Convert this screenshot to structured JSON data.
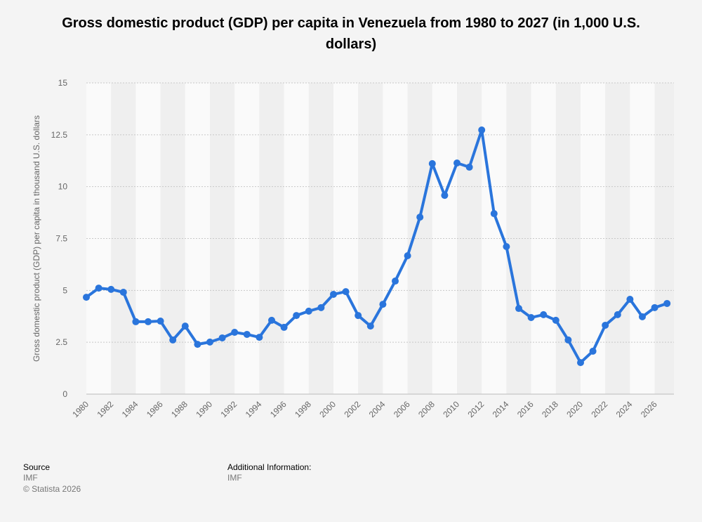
{
  "title": "Gross domestic product (GDP) per capita in Venezuela from 1980 to 2027 (in 1,000 U.S. dollars)",
  "footer": {
    "source_label": "Source",
    "source_value": "IMF",
    "copyright": "© Statista 2026",
    "additional_label": "Additional Information:",
    "additional_value": "IMF"
  },
  "colors": {
    "line": "#2a75dc",
    "band_light": "#fafafa",
    "band_dark": "#efefef",
    "grid": "#c8c8c8"
  },
  "chart_data": {
    "type": "line",
    "title": "Gross domestic product (GDP) per capita in Venezuela from 1980 to 2027 (in 1,000 U.S. dollars)",
    "xlabel": "",
    "ylabel": "Gross domestic product (GDP) per capita in thousand U.S. dollars",
    "ylim": [
      0,
      15
    ],
    "yticks": [
      "0",
      "2.5",
      "5",
      "7.5",
      "10",
      "12.5",
      "15"
    ],
    "ytick_values": [
      0,
      2.5,
      5,
      7.5,
      10,
      12.5,
      15
    ],
    "xticks": [
      "1980",
      "1982",
      "1984",
      "1986",
      "1988",
      "1990",
      "1992",
      "1994",
      "1996",
      "1998",
      "2000",
      "2002",
      "2004",
      "2006",
      "2008",
      "2010",
      "2012",
      "2014",
      "2016",
      "2018",
      "2020",
      "2022",
      "2024",
      "2026"
    ],
    "grid": true,
    "x": [
      1980,
      1981,
      1982,
      1983,
      1984,
      1985,
      1986,
      1987,
      1988,
      1989,
      1990,
      1991,
      1992,
      1993,
      1994,
      1995,
      1996,
      1997,
      1998,
      1999,
      2000,
      2001,
      2002,
      2003,
      2004,
      2005,
      2006,
      2007,
      2008,
      2009,
      2010,
      2011,
      2012,
      2013,
      2014,
      2015,
      2016,
      2017,
      2018,
      2019,
      2020,
      2021,
      2022,
      2023,
      2024,
      2025,
      2026,
      2027
    ],
    "series": [
      {
        "name": "GDP per capita",
        "values": [
          4.67,
          5.11,
          5.05,
          4.91,
          3.49,
          3.49,
          3.52,
          2.61,
          3.28,
          2.4,
          2.51,
          2.71,
          2.98,
          2.88,
          2.74,
          3.56,
          3.22,
          3.79,
          4.0,
          4.17,
          4.81,
          4.94,
          3.79,
          3.28,
          4.33,
          5.45,
          6.67,
          8.53,
          11.11,
          9.58,
          11.14,
          10.94,
          12.73,
          8.7,
          7.11,
          4.13,
          3.69,
          3.83,
          3.56,
          2.61,
          1.52,
          2.07,
          3.32,
          3.83,
          4.57,
          3.73,
          4.17,
          4.37
        ]
      }
    ]
  }
}
